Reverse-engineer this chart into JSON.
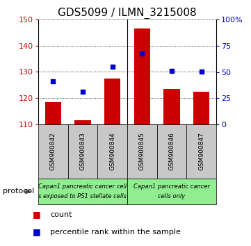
{
  "title": "GDS5099 / ILMN_3215008",
  "samples": [
    "GSM900842",
    "GSM900843",
    "GSM900844",
    "GSM900845",
    "GSM900846",
    "GSM900847"
  ],
  "bar_values": [
    118.5,
    111.5,
    127.5,
    146.5,
    123.5,
    122.5
  ],
  "dot_values": [
    126.5,
    122.5,
    132.0,
    137.0,
    130.5,
    130.0
  ],
  "bar_bottom": 110,
  "ylim": [
    110,
    150
  ],
  "yticks_left": [
    110,
    120,
    130,
    140,
    150
  ],
  "yticks_right_vals": [
    0,
    25,
    50,
    75,
    100
  ],
  "yticks_right_labels": [
    "0",
    "25",
    "50",
    "75",
    "100%"
  ],
  "bar_color": "#cc0000",
  "dot_color": "#0000cc",
  "group1_label_line1": "Capan1 pancreatic cancer cell",
  "group1_label_line2": "s exposed to PS1 stellate cells",
  "group2_label_line1": "Capan1 pancreatic cancer",
  "group2_label_line2": "cells only",
  "group1_color": "#c8c8c8",
  "group2_color": "#90ee90",
  "protocol_label": "protocol",
  "legend_count_label": "count",
  "legend_percentile_label": "percentile rank within the sample",
  "title_fontsize": 11,
  "tick_fontsize": 8,
  "sample_fontsize": 6.5,
  "legend_fontsize": 8,
  "proto_text_fontsize": 6
}
